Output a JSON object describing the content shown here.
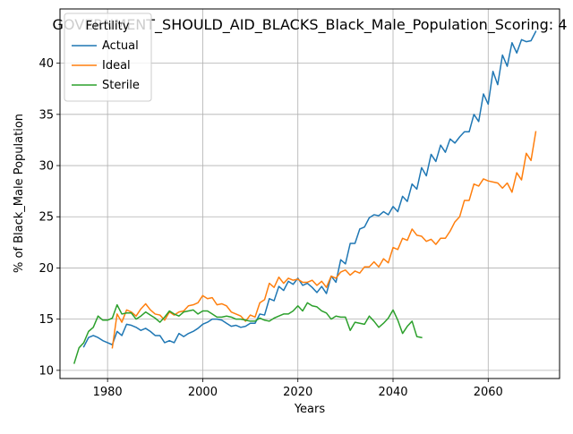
{
  "chart_data": {
    "type": "line",
    "title": "GOVERNMENT_SHOULD_AID_BLACKS_Black_Male_Population_Scoring: 4",
    "xlabel": "Years",
    "ylabel": "% of Black_Male Population",
    "xlim": [
      1970,
      2075
    ],
    "ylim": [
      9.2,
      45.3
    ],
    "xticks": [
      1980,
      2000,
      2020,
      2040,
      2060
    ],
    "yticks": [
      10,
      15,
      20,
      25,
      30,
      35,
      40
    ],
    "grid": true,
    "legend": {
      "title": "Fertility",
      "placement": "top-left"
    },
    "series": [
      {
        "name": "Actual",
        "color": "#1f77b4",
        "x": [
          1975,
          1976,
          1977,
          1978,
          1979,
          1980,
          1981,
          1982,
          1983,
          1984,
          1985,
          1986,
          1987,
          1988,
          1989,
          1990,
          1991,
          1992,
          1993,
          1994,
          1995,
          1996,
          1997,
          1998,
          1999,
          2000,
          2001,
          2002,
          2003,
          2004,
          2005,
          2006,
          2007,
          2008,
          2009,
          2010,
          2011,
          2012,
          2013,
          2014,
          2015,
          2016,
          2017,
          2018,
          2019,
          2020,
          2021,
          2022,
          2023,
          2024,
          2025,
          2026,
          2027,
          2028,
          2029,
          2030,
          2031,
          2032,
          2033,
          2034,
          2035,
          2036,
          2037,
          2038,
          2039,
          2040,
          2041,
          2042,
          2043,
          2044,
          2045,
          2046,
          2047,
          2048,
          2049,
          2050,
          2051,
          2052,
          2053,
          2054,
          2055,
          2056,
          2057,
          2058,
          2059,
          2060,
          2061,
          2062,
          2063,
          2064,
          2065,
          2066,
          2067,
          2068,
          2069,
          2070
        ],
        "values": [
          12.3,
          13.2,
          13.4,
          13.2,
          12.9,
          12.7,
          12.5,
          13.8,
          13.4,
          14.5,
          14.4,
          14.2,
          13.9,
          14.1,
          13.8,
          13.4,
          13.4,
          12.7,
          12.9,
          12.7,
          13.6,
          13.3,
          13.6,
          13.8,
          14.1,
          14.5,
          14.7,
          15.0,
          15.0,
          14.9,
          14.6,
          14.3,
          14.4,
          14.2,
          14.3,
          14.6,
          14.6,
          15.5,
          15.4,
          17.0,
          16.8,
          18.2,
          17.8,
          18.7,
          18.4,
          19.0,
          18.3,
          18.5,
          18.1,
          17.6,
          18.2,
          17.5,
          19.2,
          18.6,
          20.8,
          20.4,
          22.4,
          22.4,
          23.8,
          24.0,
          24.9,
          25.2,
          25.1,
          25.5,
          25.2,
          26.0,
          25.5,
          27.0,
          26.5,
          28.2,
          27.7,
          29.8,
          29.0,
          31.1,
          30.4,
          32.0,
          31.3,
          32.6,
          32.2,
          32.8,
          33.3,
          33.3,
          35.0,
          34.3,
          37.0,
          36.0,
          39.2,
          37.9,
          40.8,
          39.7,
          42.0,
          41.0,
          42.3,
          42.1,
          42.2,
          43.1
        ]
      },
      {
        "name": "Ideal",
        "color": "#ff7f0e",
        "x": [
          1981,
          1982,
          1983,
          1984,
          1985,
          1986,
          1987,
          1988,
          1989,
          1990,
          1991,
          1992,
          1993,
          1994,
          1995,
          1996,
          1997,
          1998,
          1999,
          2000,
          2001,
          2002,
          2003,
          2004,
          2005,
          2006,
          2007,
          2008,
          2009,
          2010,
          2011,
          2012,
          2013,
          2014,
          2015,
          2016,
          2017,
          2018,
          2019,
          2020,
          2021,
          2022,
          2023,
          2024,
          2025,
          2026,
          2027,
          2028,
          2029,
          2030,
          2031,
          2032,
          2033,
          2034,
          2035,
          2036,
          2037,
          2038,
          2039,
          2040,
          2041,
          2042,
          2043,
          2044,
          2045,
          2046,
          2047,
          2048,
          2049,
          2050,
          2051,
          2052,
          2053,
          2054,
          2055,
          2056,
          2057,
          2058,
          2059,
          2060,
          2061,
          2062,
          2063,
          2064,
          2065,
          2066,
          2067,
          2068,
          2069,
          2070
        ],
        "values": [
          12.2,
          15.5,
          14.7,
          15.9,
          15.7,
          15.3,
          16.0,
          16.5,
          15.9,
          15.5,
          15.4,
          14.9,
          15.7,
          15.4,
          15.7,
          15.8,
          16.3,
          16.4,
          16.6,
          17.3,
          17.0,
          17.1,
          16.4,
          16.5,
          16.3,
          15.7,
          15.5,
          15.3,
          14.8,
          15.4,
          15.2,
          16.6,
          16.9,
          18.5,
          18.1,
          19.1,
          18.5,
          19.0,
          18.8,
          18.9,
          18.6,
          18.6,
          18.8,
          18.3,
          18.7,
          18.1,
          19.2,
          19.0,
          19.6,
          19.8,
          19.3,
          19.7,
          19.5,
          20.1,
          20.1,
          20.6,
          20.1,
          20.9,
          20.5,
          22.0,
          21.8,
          22.9,
          22.7,
          23.8,
          23.2,
          23.1,
          22.6,
          22.8,
          22.3,
          22.9,
          22.9,
          23.6,
          24.5,
          25.0,
          26.6,
          26.6,
          28.2,
          28.0,
          28.7,
          28.5,
          28.4,
          28.3,
          27.8,
          28.3,
          27.4,
          29.3,
          28.6,
          31.2,
          30.5,
          33.3
        ]
      },
      {
        "name": "Sterile",
        "color": "#2ca02c",
        "x": [
          1973,
          1974,
          1975,
          1976,
          1977,
          1978,
          1979,
          1980,
          1981,
          1982,
          1983,
          1984,
          1985,
          1986,
          1987,
          1988,
          1989,
          1990,
          1991,
          1992,
          1993,
          1994,
          1995,
          1996,
          1997,
          1998,
          1999,
          2000,
          2001,
          2002,
          2003,
          2004,
          2005,
          2006,
          2007,
          2008,
          2009,
          2010,
          2011,
          2012,
          2013,
          2014,
          2015,
          2016,
          2017,
          2018,
          2019,
          2020,
          2021,
          2022,
          2023,
          2024,
          2025,
          2026,
          2027,
          2028,
          2029,
          2030,
          2031,
          2032,
          2033,
          2034,
          2035,
          2036,
          2037,
          2038,
          2039,
          2040,
          2041,
          2042,
          2043,
          2044,
          2045,
          2046
        ],
        "values": [
          10.7,
          12.2,
          12.7,
          13.8,
          14.2,
          15.3,
          14.9,
          14.9,
          15.1,
          16.4,
          15.5,
          15.6,
          15.6,
          15.0,
          15.3,
          15.7,
          15.4,
          15.1,
          14.7,
          15.2,
          15.8,
          15.5,
          15.3,
          15.7,
          15.8,
          15.9,
          15.5,
          15.8,
          15.8,
          15.5,
          15.2,
          15.2,
          15.3,
          15.2,
          15.0,
          15.0,
          14.9,
          14.8,
          14.8,
          15.1,
          14.9,
          14.8,
          15.1,
          15.3,
          15.5,
          15.5,
          15.8,
          16.3,
          15.8,
          16.6,
          16.3,
          16.2,
          15.8,
          15.6,
          15.0,
          15.3,
          15.2,
          15.2,
          13.9,
          14.7,
          14.6,
          14.5,
          15.3,
          14.8,
          14.2,
          14.6,
          15.1,
          15.9,
          14.9,
          13.6,
          14.3,
          14.8,
          13.3,
          13.2
        ]
      }
    ]
  }
}
